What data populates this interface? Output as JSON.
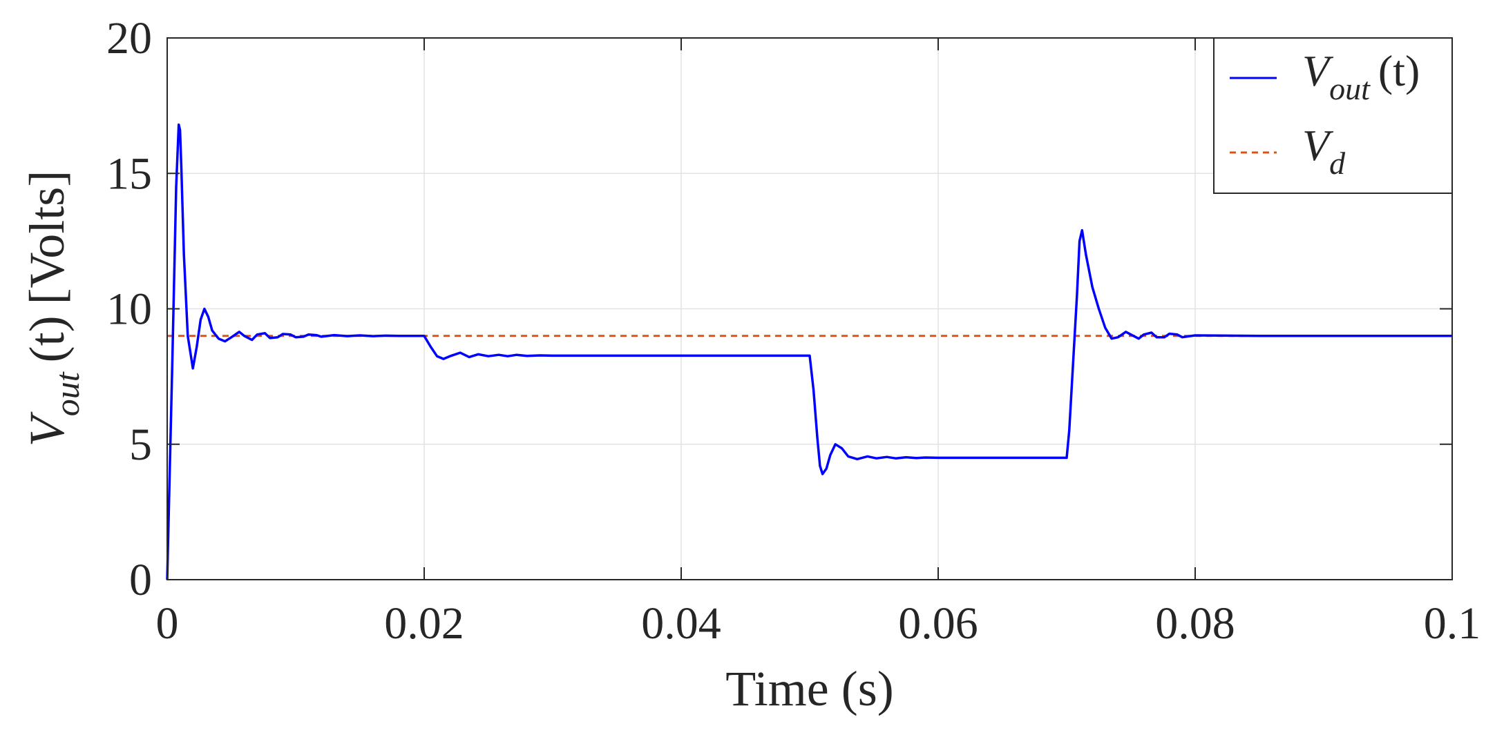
{
  "chart_data": {
    "type": "line",
    "xlabel": "Time (s)",
    "ylabel": {
      "symbol": "V",
      "subscript": "out",
      "argument": "(t)",
      "unit": "[Volts]"
    },
    "xlim": [
      0,
      0.1
    ],
    "ylim": [
      0,
      20
    ],
    "x_ticks": [
      "0",
      "0.02",
      "0.04",
      "0.06",
      "0.08",
      "0.1"
    ],
    "y_ticks": [
      "0",
      "5",
      "10",
      "15",
      "20"
    ],
    "grid": true,
    "legend_position": "top-right",
    "series": [
      {
        "name": "V_out (t)",
        "legend": {
          "symbol": "V",
          "subscript": "out",
          "argument": "(t)"
        },
        "style": "solid",
        "color": "#0000ff",
        "x": [
          0,
          0.0004,
          0.0007,
          0.0009,
          0.001,
          0.0011,
          0.0013,
          0.0016,
          0.002,
          0.0023,
          0.0026,
          0.0029,
          0.0032,
          0.0035,
          0.004,
          0.0045,
          0.005,
          0.0056,
          0.006,
          0.0066,
          0.007,
          0.0076,
          0.008,
          0.0086,
          0.009,
          0.0096,
          0.01,
          0.0106,
          0.011,
          0.0116,
          0.012,
          0.013,
          0.014,
          0.015,
          0.016,
          0.017,
          0.018,
          0.019,
          0.02,
          0.0205,
          0.021,
          0.0215,
          0.022,
          0.0228,
          0.0235,
          0.0242,
          0.025,
          0.0258,
          0.0265,
          0.0272,
          0.028,
          0.029,
          0.03,
          0.032,
          0.034,
          0.036,
          0.038,
          0.04,
          0.045,
          0.05,
          0.0503,
          0.0506,
          0.0508,
          0.051,
          0.0513,
          0.0516,
          0.052,
          0.0525,
          0.053,
          0.0537,
          0.0545,
          0.0552,
          0.056,
          0.0567,
          0.0575,
          0.0583,
          0.059,
          0.06,
          0.062,
          0.064,
          0.066,
          0.068,
          0.07,
          0.0702,
          0.0705,
          0.0708,
          0.071,
          0.0712,
          0.0715,
          0.072,
          0.0725,
          0.073,
          0.0735,
          0.074,
          0.0746,
          0.075,
          0.0756,
          0.076,
          0.0766,
          0.077,
          0.0776,
          0.078,
          0.0786,
          0.079,
          0.08,
          0.085,
          0.09,
          0.095,
          0.1
        ],
        "y": [
          0,
          8.0,
          14.5,
          16.8,
          16.6,
          15.2,
          12.0,
          9.0,
          7.8,
          8.6,
          9.6,
          10.0,
          9.7,
          9.2,
          8.9,
          8.8,
          8.95,
          9.15,
          9.0,
          8.85,
          9.05,
          9.1,
          8.92,
          8.95,
          9.07,
          9.05,
          8.95,
          8.97,
          9.05,
          9.03,
          8.97,
          9.03,
          8.99,
          9.02,
          8.99,
          9.01,
          9.0,
          9.0,
          9.0,
          8.6,
          8.25,
          8.15,
          8.25,
          8.38,
          8.22,
          8.32,
          8.25,
          8.3,
          8.25,
          8.3,
          8.26,
          8.28,
          8.27,
          8.27,
          8.27,
          8.27,
          8.27,
          8.27,
          8.27,
          8.27,
          7.0,
          5.2,
          4.2,
          3.9,
          4.1,
          4.6,
          5.0,
          4.85,
          4.55,
          4.45,
          4.55,
          4.48,
          4.53,
          4.48,
          4.52,
          4.49,
          4.51,
          4.5,
          4.5,
          4.5,
          4.5,
          4.5,
          4.5,
          5.5,
          8.0,
          10.5,
          12.5,
          12.9,
          12.0,
          10.8,
          10.0,
          9.3,
          8.9,
          8.95,
          9.15,
          9.05,
          8.9,
          9.05,
          9.12,
          8.95,
          8.95,
          9.08,
          9.05,
          8.95,
          9.02,
          9.0,
          9.0,
          9.0,
          9.0
        ]
      },
      {
        "name": "V_d",
        "legend": {
          "symbol": "V",
          "subscript": "d"
        },
        "style": "dashed",
        "color": "#d95319",
        "x": [
          0,
          0.1
        ],
        "y": [
          9,
          9
        ]
      }
    ]
  }
}
